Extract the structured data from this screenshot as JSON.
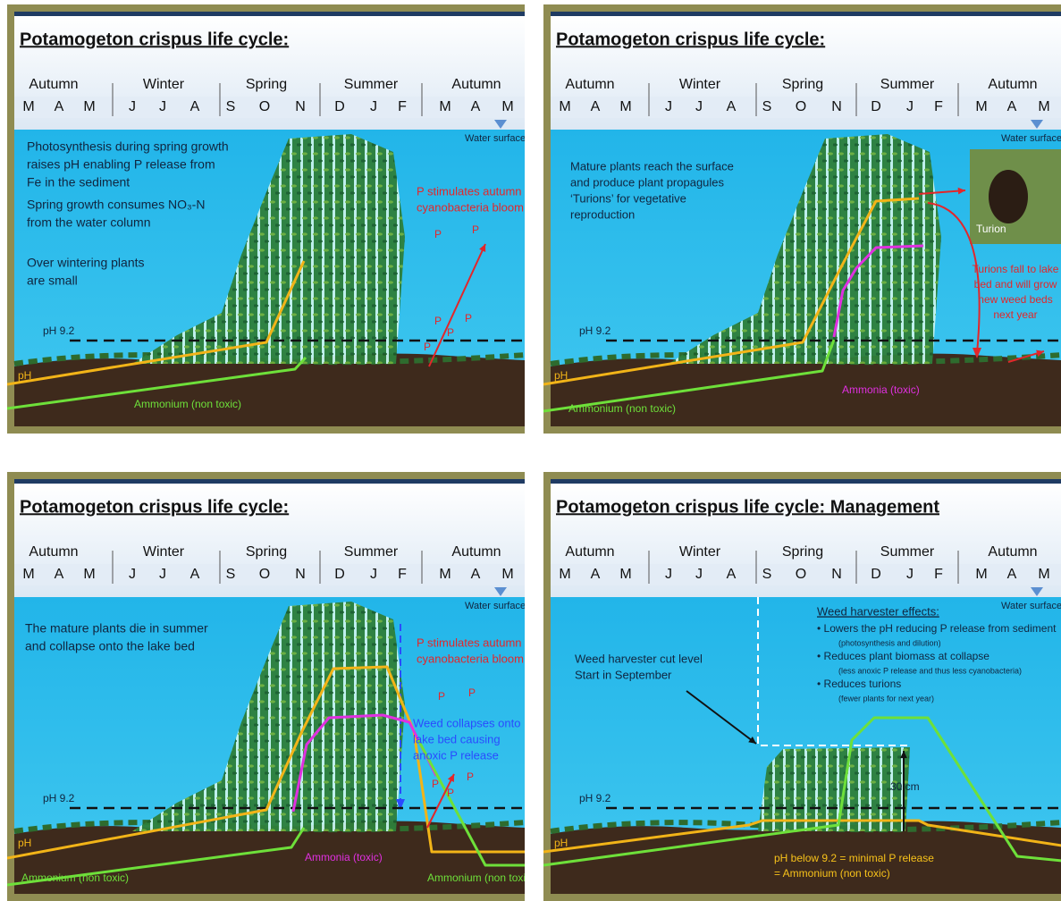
{
  "panels": [
    {
      "title": "Potamogeton crispus life cycle:",
      "seasons": [
        "Autumn",
        "Winter",
        "Spring",
        "Summer",
        "Autumn"
      ],
      "months": [
        "M",
        "A",
        "M",
        "J",
        "J",
        "A",
        "S",
        "O",
        "N",
        "D",
        "J",
        "F",
        "M",
        "A",
        "M"
      ],
      "water_surface": "Water surface",
      "ph_threshold": "pH 9.2",
      "ph_label": "pH",
      "notes": [
        {
          "lines": [
            "Photosynthesis during spring growth",
            "raises pH enabling P release from",
            "Fe in the sediment"
          ]
        },
        {
          "lines": [
            "Spring growth consumes NO₃-N",
            "from the water column"
          ]
        },
        {
          "lines": [
            "Over wintering plants",
            "are small"
          ]
        },
        {
          "lines": [
            "P stimulates autumn",
            "cyanobacteria bloom"
          ]
        },
        {
          "lines": [
            "Ammonium (non toxic)"
          ]
        }
      ],
      "p_markers": [
        "P",
        "P",
        "P",
        "P",
        "P",
        "P"
      ]
    },
    {
      "title": "Potamogeton crispus life cycle:",
      "seasons": [
        "Autumn",
        "Winter",
        "Spring",
        "Summer",
        "Autumn"
      ],
      "months": [
        "M",
        "A",
        "M",
        "J",
        "J",
        "A",
        "S",
        "O",
        "N",
        "D",
        "J",
        "F",
        "M",
        "A",
        "M"
      ],
      "water_surface": "Water surface",
      "ph_threshold": "pH 9.2",
      "ph_label": "pH",
      "notes": [
        {
          "lines": [
            "Mature plants reach the surface",
            "and produce plant propagules",
            "‘Turions’ for vegetative",
            "reproduction"
          ]
        },
        {
          "lines": [
            "Turion"
          ]
        },
        {
          "lines": [
            "Turions fall to lake",
            "bed and will grow",
            "new weed beds",
            "next year"
          ]
        },
        {
          "lines": [
            "Ammonia (toxic)"
          ]
        },
        {
          "lines": [
            "Ammonium (non toxic)"
          ]
        }
      ]
    },
    {
      "title": "Potamogeton crispus life cycle:",
      "seasons": [
        "Autumn",
        "Winter",
        "Spring",
        "Summer",
        "Autumn"
      ],
      "months": [
        "M",
        "A",
        "M",
        "J",
        "J",
        "A",
        "S",
        "O",
        "N",
        "D",
        "J",
        "F",
        "M",
        "A",
        "M"
      ],
      "water_surface": "Water surface",
      "ph_threshold": "pH 9.2",
      "ph_label": "pH",
      "notes": [
        {
          "lines": [
            "The mature plants die in summer",
            "and collapse onto the lake bed"
          ]
        },
        {
          "lines": [
            "P stimulates autumn",
            "cyanobacteria bloom"
          ]
        },
        {
          "lines": [
            "Weed collapses onto",
            "lake bed causing",
            "anoxic P release"
          ]
        },
        {
          "lines": [
            "Ammonia (toxic)"
          ]
        },
        {
          "lines": [
            "Ammonium (non toxic)"
          ]
        },
        {
          "lines": [
            "Ammonium (non toxic)"
          ]
        }
      ],
      "p_markers": [
        "P",
        "P",
        "P",
        "P",
        "P"
      ]
    },
    {
      "title": "Potamogeton crispus life cycle:  Management",
      "seasons": [
        "Autumn",
        "Winter",
        "Spring",
        "Summer",
        "Autumn"
      ],
      "months": [
        "M",
        "A",
        "M",
        "J",
        "J",
        "A",
        "S",
        "O",
        "N",
        "D",
        "J",
        "F",
        "M",
        "A",
        "M"
      ],
      "water_surface": "Water surface",
      "ph_threshold": "pH 9.2",
      "ph_label": "pH",
      "notes": [
        {
          "lines": [
            "Weed harvester cut level",
            "Start in September"
          ]
        },
        {
          "lines": [
            "Weed harvester effects:"
          ]
        },
        {
          "lines": [
            "•  Lowers the pH reducing P release from sediment"
          ]
        },
        {
          "lines": [
            "(photosynthesis and dilution)"
          ]
        },
        {
          "lines": [
            "•  Reduces plant biomass at collapse"
          ]
        },
        {
          "lines": [
            "(less anoxic P release and thus less cyanobacteria)"
          ]
        },
        {
          "lines": [
            "•  Reduces turions"
          ]
        },
        {
          "lines": [
            "(fewer plants for next year)"
          ]
        },
        {
          "lines": [
            "30 cm"
          ]
        },
        {
          "lines": [
            "pH below 9.2 = minimal P release",
            "= Ammonium (non toxic)"
          ]
        }
      ]
    }
  ]
}
